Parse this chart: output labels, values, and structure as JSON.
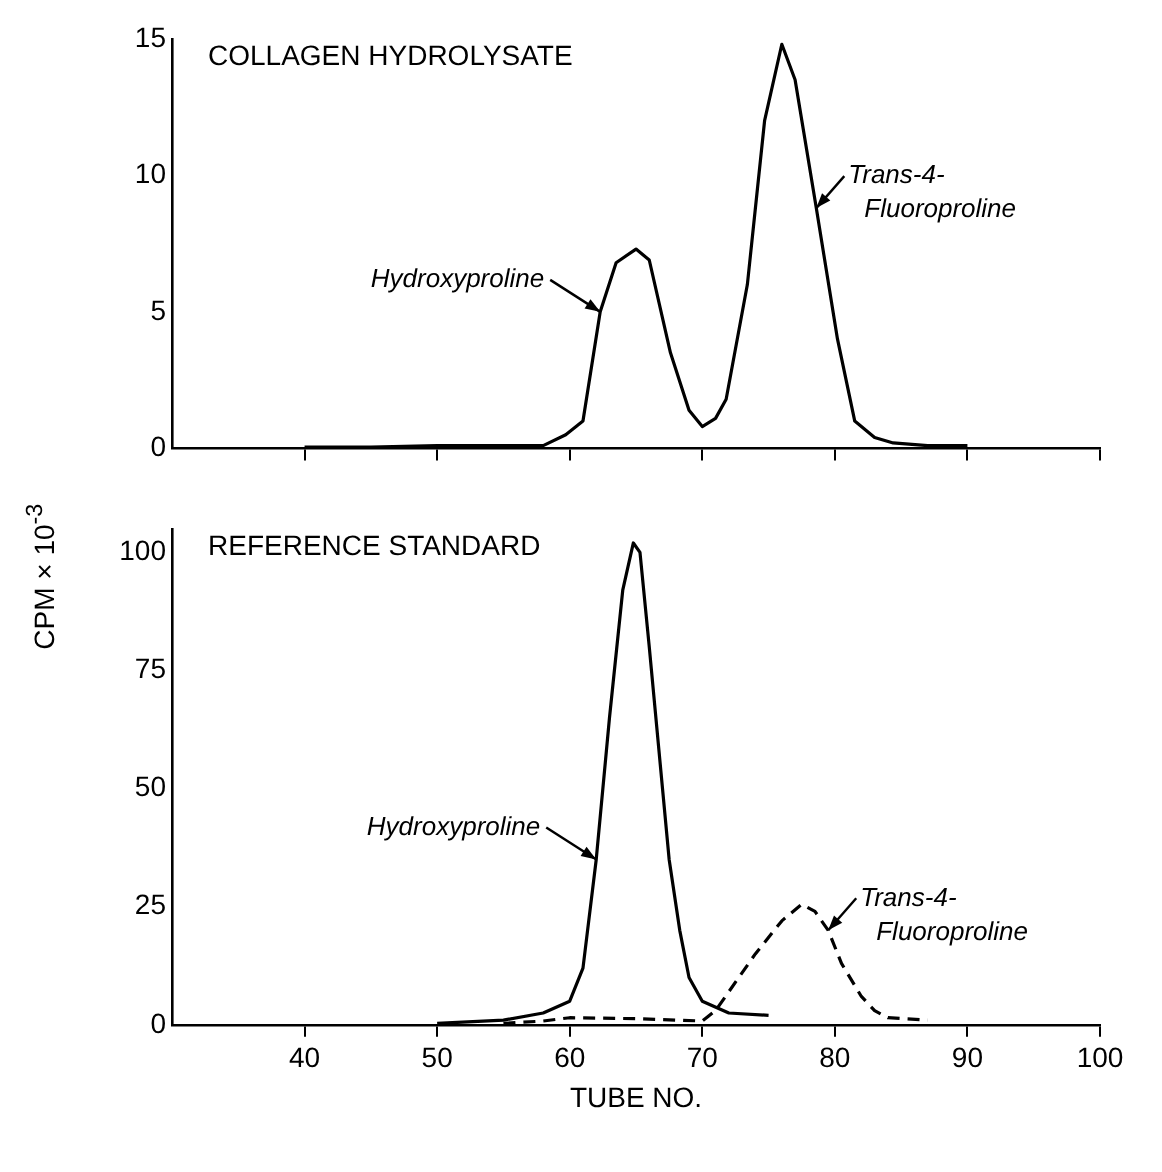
{
  "chart_data": [
    {
      "type": "line",
      "title": "COLLAGEN HYDROLYSATE",
      "ylabel": "CPM × 10$^{-3}$",
      "xlim": [
        30,
        100
      ],
      "xticks": [
        {
          "value": 40,
          "label": null
        },
        {
          "value": 50,
          "label": null
        },
        {
          "value": 60,
          "label": null
        },
        {
          "value": 70,
          "label": null
        },
        {
          "value": 80,
          "label": null
        },
        {
          "value": 90,
          "label": null
        },
        {
          "value": 100,
          "label": null
        }
      ],
      "ylim": [
        0,
        15
      ],
      "yticks": [
        0,
        5,
        10,
        15
      ],
      "tick_labels": "y",
      "marker": "none",
      "grid": false,
      "legend": false,
      "series": [
        {
          "color": "#000000",
          "line_style": "solid",
          "x": [
            40,
            45,
            50,
            55,
            58,
            59.7,
            61,
            62.3,
            63.5,
            65,
            66,
            67.6,
            69,
            70,
            71,
            71.8,
            73.4,
            74.7,
            76,
            77,
            78.6,
            80.2,
            81.5,
            83,
            84.4,
            87,
            90
          ],
          "values": [
            0.05,
            0.05,
            0.1,
            0.1,
            0.1,
            0.5,
            1,
            5,
            6.8,
            7.3,
            6.9,
            3.5,
            1.4,
            0.8,
            1.1,
            1.8,
            6,
            12,
            14.8,
            13.5,
            8.8,
            4,
            1,
            0.4,
            0.2,
            0.1,
            0.1
          ]
        }
      ],
      "annotations": [
        {
          "text": "Hydroxyproline",
          "x": 62.3,
          "y": 5
        },
        {
          "text": "Trans-4-Fluoroproline",
          "x": 78.6,
          "y": 8.8
        }
      ]
    },
    {
      "type": "line",
      "title": "REFERENCE STANDARD",
      "xlabel": "TUBE NO.",
      "xlim": [
        30,
        100
      ],
      "xticks": [
        40,
        50,
        60,
        70,
        80,
        90,
        100
      ],
      "ylim": [
        0,
        105
      ],
      "yticks": [
        0,
        25,
        50,
        75,
        100
      ],
      "marker": "none",
      "grid": false,
      "legend": false,
      "series": [
        {
          "color": "#000000",
          "line_style": "solid",
          "x": [
            50,
            55,
            58,
            60,
            61,
            62,
            63,
            64,
            64.8,
            65.3,
            66,
            67,
            67.5,
            68.3,
            69,
            70,
            72,
            75
          ],
          "values": [
            0.3,
            1,
            2.5,
            5,
            12,
            35,
            65,
            92,
            102,
            100,
            80,
            50,
            35,
            20,
            10,
            5,
            2.5,
            2
          ]
        },
        {
          "color": "#000000",
          "line_style": "dashed",
          "x": [
            55,
            58,
            60,
            65,
            70,
            71,
            72,
            74,
            76,
            77.5,
            78.5,
            79.5,
            80.5,
            82,
            83,
            84,
            87
          ],
          "values": [
            0.3,
            0.8,
            1.5,
            1.3,
            0.8,
            3,
            7,
            15,
            22,
            25.5,
            24,
            20,
            13,
            6,
            3,
            1.5,
            1
          ]
        }
      ],
      "annotations": [
        {
          "text": "Hydroxyproline",
          "x": 62,
          "y": 35
        },
        {
          "text": "Trans-4-Fluoroproline",
          "x": 79.5,
          "y": 20
        }
      ]
    }
  ]
}
